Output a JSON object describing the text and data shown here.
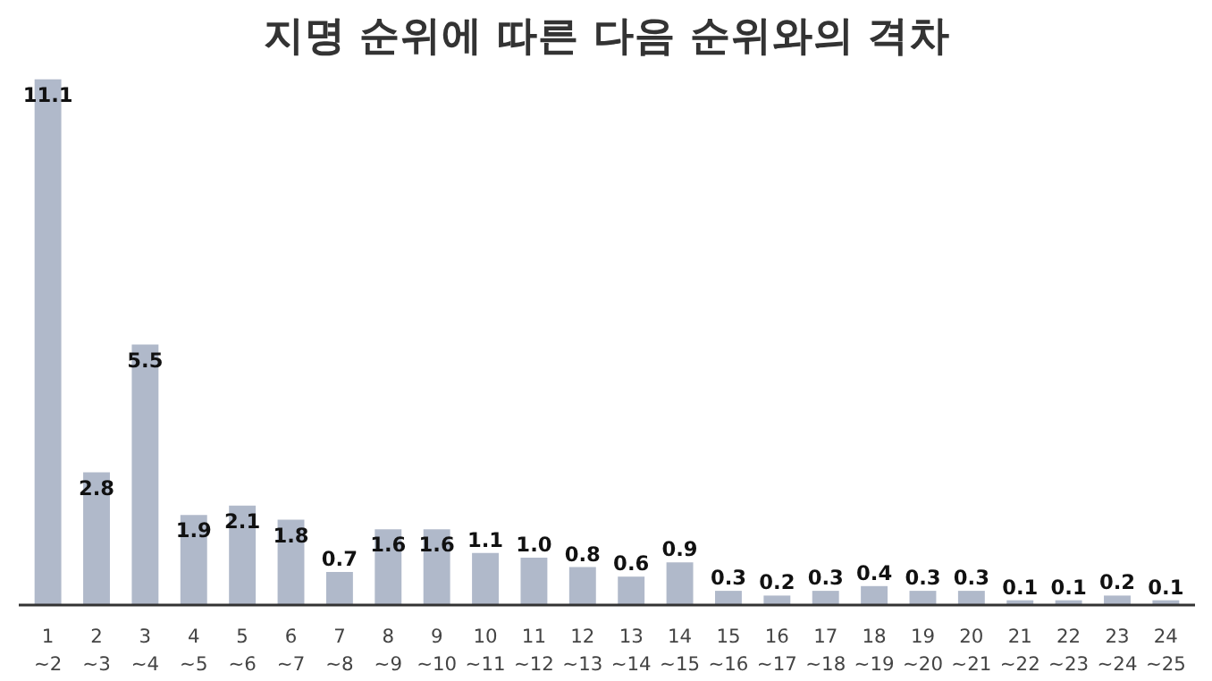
{
  "chart_data": {
    "type": "bar",
    "title": "지명 순위에 따른 다음 순위와의 격차",
    "categories": [
      "1\n~2",
      "2\n~3",
      "3\n~4",
      "4\n~5",
      "5\n~6",
      "6\n~7",
      "7\n~8",
      "8\n~9",
      "9\n~10",
      "10\n~11",
      "11\n~12",
      "12\n~13",
      "13\n~14",
      "14\n~15",
      "15\n~16",
      "16\n~17",
      "17\n~18",
      "18\n~19",
      "19\n~20",
      "20\n~21",
      "21\n~22",
      "22\n~23",
      "23\n~24",
      "24\n~25"
    ],
    "values": [
      11.1,
      2.8,
      5.5,
      1.9,
      2.1,
      1.8,
      0.7,
      1.6,
      1.6,
      1.1,
      1.0,
      0.8,
      0.6,
      0.9,
      0.3,
      0.2,
      0.3,
      0.4,
      0.3,
      0.3,
      0.1,
      0.1,
      0.2,
      0.1
    ],
    "value_labels": [
      "11.1",
      "2.8",
      "5.5",
      "1.9",
      "2.1",
      "1.8",
      "0.7",
      "1.6",
      "1.6",
      "1.1",
      "1.0",
      "0.8",
      "0.6",
      "0.9",
      "0.3",
      "0.2",
      "0.3",
      "0.4",
      "0.3",
      "0.3",
      "0.1",
      "0.1",
      "0.2",
      "0.1"
    ],
    "color": "#b0b9ca",
    "grid": false
  }
}
